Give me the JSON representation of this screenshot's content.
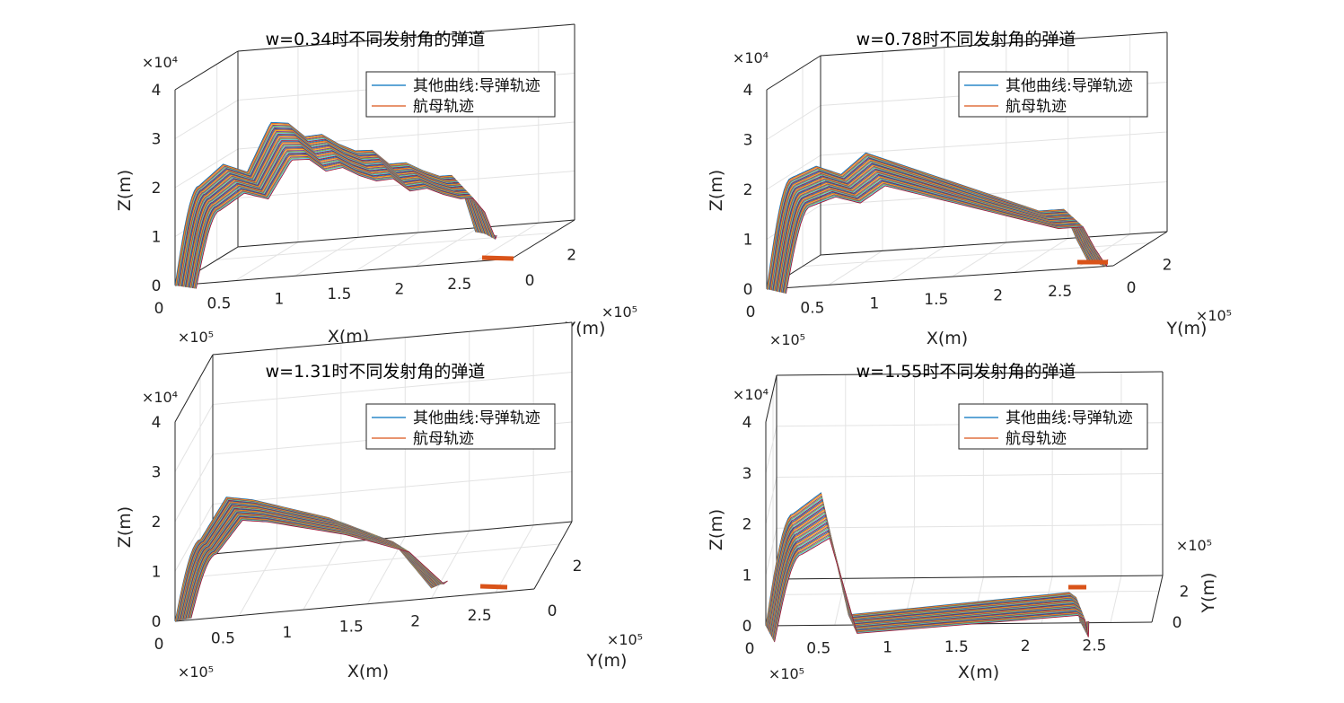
{
  "figure": {
    "legend_line1": "其他曲线:导弹轨迹",
    "legend_line2": "航母轨迹",
    "x_label": "X(m)",
    "y_label": "Y(m)",
    "z_label": "Z(m)",
    "x_exponent": "×10⁵",
    "y_exponent": "×10⁵",
    "z_exponent": "×10⁴",
    "colors": [
      "#0072BD",
      "#D95319",
      "#EDB120",
      "#7E2F8E",
      "#77AC30",
      "#4DBEEE",
      "#A2142F"
    ]
  },
  "chart_data": [
    {
      "type": "line",
      "title": "w=0.34时不同发射角的弹道",
      "xlabel": "X(m)",
      "ylabel": "Y(m)",
      "zlabel": "Z(m)",
      "x_ticks": [
        "0",
        "0.5",
        "1",
        "1.5",
        "2",
        "2.5"
      ],
      "y_ticks": [
        "0",
        "2"
      ],
      "z_ticks": [
        "0",
        "1",
        "2",
        "3",
        "4"
      ],
      "xlim": [
        0,
        280000
      ],
      "ylim": [
        0,
        300000
      ],
      "zlim": [
        0,
        40000
      ],
      "grid": true,
      "legend": "top-right",
      "series": [
        {
          "name": "其他曲线:导弹轨迹",
          "color": "#0072BD"
        },
        {
          "name": "航母轨迹",
          "color": "#D95319"
        }
      ],
      "missile_profile": {
        "x": [
          0,
          20000,
          40000,
          60000,
          80000,
          220000,
          230000,
          240000,
          250000
        ],
        "z": [
          0,
          20000,
          24000,
          22000,
          32000,
          18000,
          18000,
          14000,
          6000
        ]
      },
      "carrier_track": {
        "x": [
          255000,
          268000
        ],
        "y": [
          0,
          0
        ],
        "z": [
          0,
          0
        ]
      }
    },
    {
      "type": "line",
      "title": "w=0.78时不同发射角的弹道",
      "xlabel": "X(m)",
      "ylabel": "Y(m)",
      "zlabel": "Z(m)",
      "x_ticks": [
        "0",
        "0.5",
        "1",
        "1.5",
        "2",
        "2.5"
      ],
      "y_ticks": [
        "0",
        "2"
      ],
      "z_ticks": [
        "0",
        "1",
        "2",
        "3",
        "4"
      ],
      "xlim": [
        0,
        280000
      ],
      "ylim": [
        0,
        300000
      ],
      "zlim": [
        0,
        40000
      ],
      "grid": true,
      "legend": "top-right",
      "series": [
        {
          "name": "其他曲线:导弹轨迹",
          "color": "#0072BD"
        },
        {
          "name": "航母轨迹",
          "color": "#D95319"
        }
      ],
      "missile_profile": {
        "x": [
          0,
          20000,
          40000,
          60000,
          80000,
          220000,
          240000,
          250000,
          260000
        ],
        "z": [
          0,
          22000,
          24000,
          22000,
          26000,
          12000,
          12000,
          6000,
          1000
        ]
      },
      "carrier_track": {
        "x": [
          255000,
          268000
        ],
        "y": [
          0,
          0
        ],
        "z": [
          0,
          0
        ]
      }
    },
    {
      "type": "line",
      "title": "w=1.31时不同发射角的弹道",
      "xlabel": "X(m)",
      "ylabel": "Y(m)",
      "zlabel": "Z(m)",
      "x_ticks": [
        "0",
        "0.5",
        "1",
        "1.5",
        "2",
        "2.5"
      ],
      "y_ticks": [
        "0",
        "2"
      ],
      "z_ticks": [
        "0",
        "1",
        "2",
        "3",
        "4"
      ],
      "xlim": [
        0,
        280000
      ],
      "ylim": [
        0,
        300000
      ],
      "zlim": [
        0,
        40000
      ],
      "grid": true,
      "legend": "top-right",
      "series": [
        {
          "name": "其他曲线:导弹轨迹",
          "color": "#0072BD"
        },
        {
          "name": "航母轨迹",
          "color": "#D95319"
        }
      ],
      "missile_profile": {
        "x": [
          0,
          20000,
          40000,
          60000,
          120000,
          170000,
          200000
        ],
        "z": [
          0,
          16000,
          24000,
          23000,
          18000,
          12000,
          2000
        ]
      },
      "carrier_track": {
        "x": [
          245000,
          260000
        ],
        "y": [
          0,
          0
        ],
        "z": [
          0,
          0
        ]
      }
    },
    {
      "type": "line",
      "title": "w=1.55时不同发射角的弹道",
      "xlabel": "X(m)",
      "ylabel": "Y(m)",
      "zlabel": "Z(m)",
      "x_ticks": [
        "0",
        "0.5",
        "1",
        "1.5",
        "2",
        "2.5"
      ],
      "y_ticks": [
        "0",
        "2"
      ],
      "z_ticks": [
        "0",
        "1",
        "2",
        "3",
        "4"
      ],
      "xlim": [
        0,
        280000
      ],
      "ylim": [
        0,
        300000
      ],
      "zlim": [
        0,
        40000
      ],
      "grid": true,
      "legend": "top-right",
      "series": [
        {
          "name": "其他曲线:导弹轨迹",
          "color": "#0072BD"
        },
        {
          "name": "航母轨迹",
          "color": "#D95319"
        }
      ],
      "missile_profile": {
        "x": [
          0,
          20000,
          40000,
          55000,
          60000,
          220000,
          225000,
          228000
        ],
        "z": [
          0,
          22000,
          26000,
          8000,
          2000,
          6000,
          5000,
          0
        ]
      },
      "carrier_track": {
        "x": [
          220000,
          230000
        ],
        "y": [
          0,
          0
        ],
        "z": [
          0,
          0
        ]
      }
    }
  ]
}
